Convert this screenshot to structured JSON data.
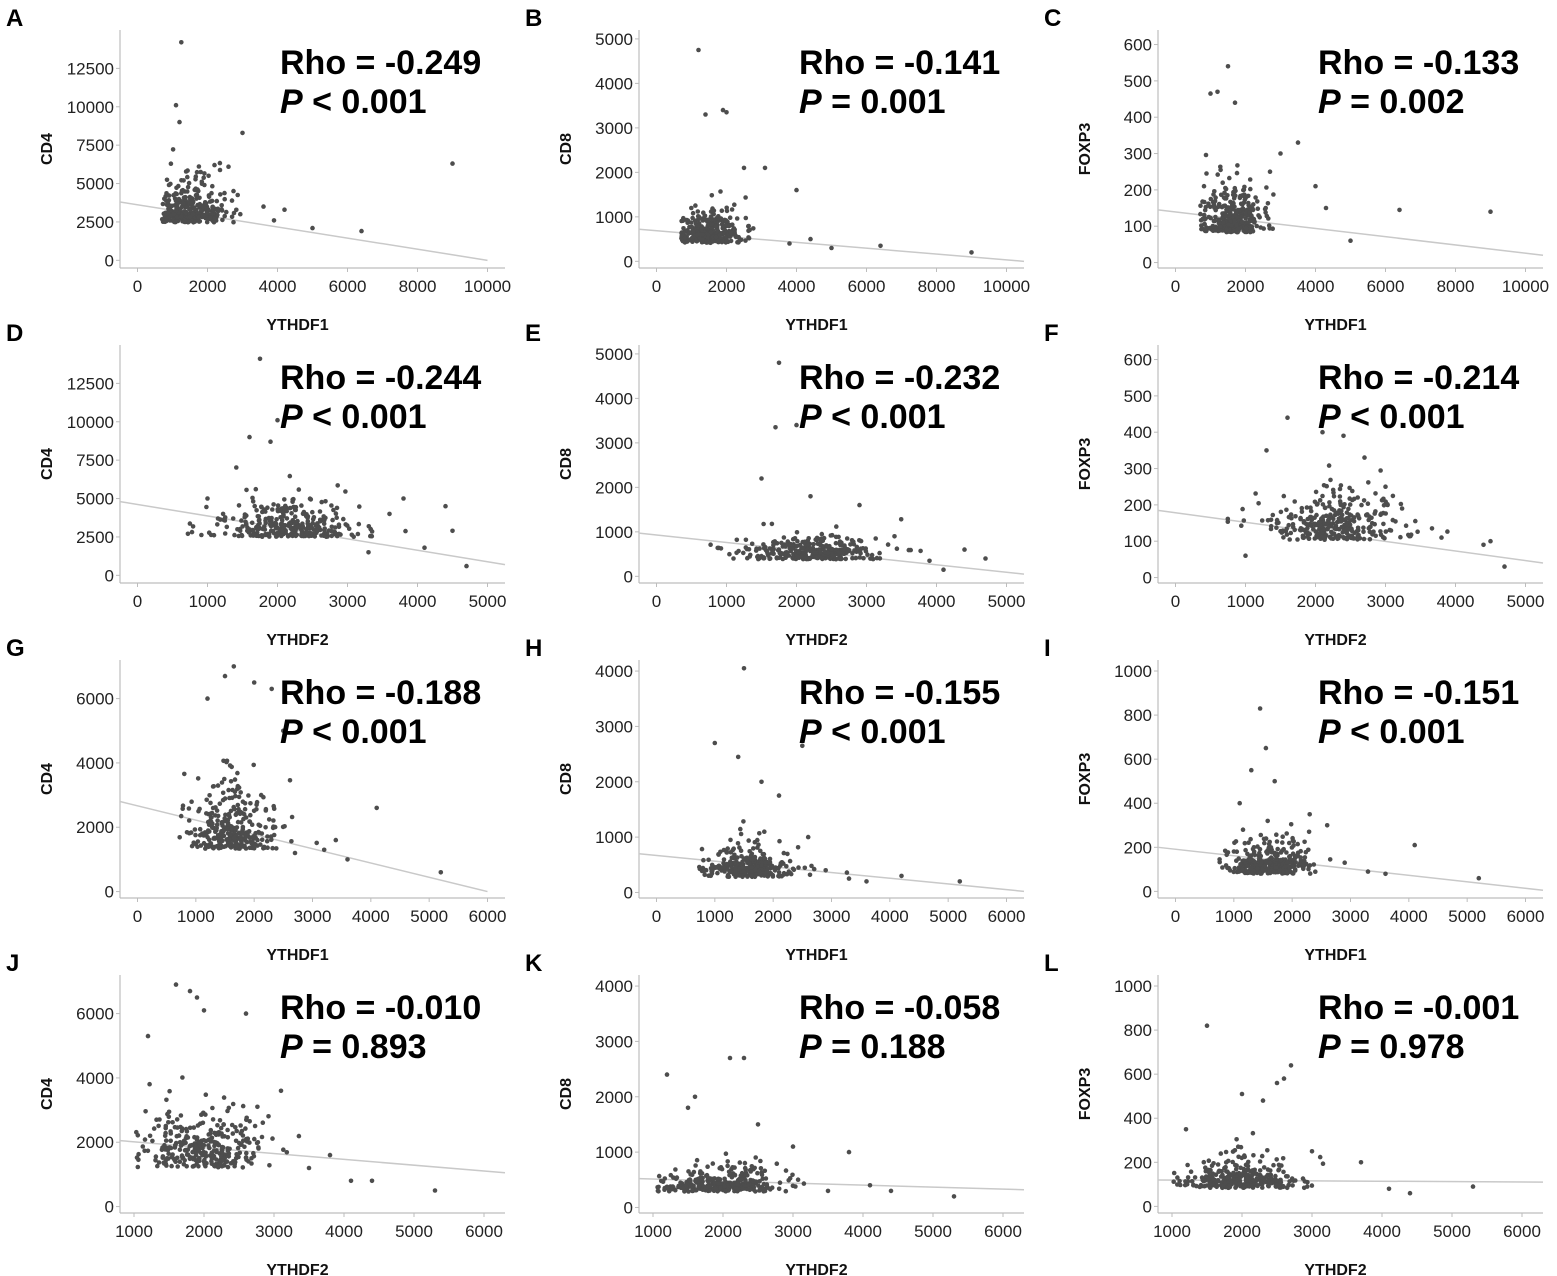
{
  "chart_data": [
    {
      "panel": "A",
      "type": "scatter",
      "xlabel": "YTHDF1",
      "ylabel": "CD4",
      "rho_label": "Rho = -0.249",
      "p_symbol": "P",
      "p_rest": " < 0.001",
      "rho": -0.249,
      "x_ticks": [
        0,
        2000,
        4000,
        6000,
        8000,
        10000
      ],
      "y_ticks": [
        0,
        2500,
        5000,
        7500,
        10000,
        12500
      ],
      "xlim": [
        -500,
        10500
      ],
      "ylim": [
        -500,
        15000
      ],
      "fit": [
        [
          -500,
          3800
        ],
        [
          10000,
          0
        ]
      ],
      "cluster": {
        "xc": 1500,
        "xs": 450,
        "yc": 3000,
        "ys": 1500,
        "n": 320,
        "seed": 11
      },
      "outliers": [
        [
          1250,
          14200
        ],
        [
          1100,
          10100
        ],
        [
          3000,
          8300
        ],
        [
          9000,
          6300
        ],
        [
          1200,
          9000
        ],
        [
          2200,
          6200
        ],
        [
          4200,
          3300
        ],
        [
          5000,
          2100
        ],
        [
          6400,
          1900
        ],
        [
          3600,
          3500
        ],
        [
          3900,
          2600
        ],
        [
          2600,
          6100
        ]
      ]
    },
    {
      "panel": "B",
      "type": "scatter",
      "xlabel": "YTHDF1",
      "ylabel": "CD8",
      "rho_label": "Rho = -0.141",
      "p_symbol": "P",
      "p_rest": " = 0.001",
      "rho": -0.141,
      "x_ticks": [
        0,
        2000,
        4000,
        6000,
        8000,
        10000
      ],
      "y_ticks": [
        0,
        1000,
        2000,
        3000,
        4000,
        5000
      ],
      "xlim": [
        -500,
        10500
      ],
      "ylim": [
        -150,
        5200
      ],
      "fit": [
        [
          -500,
          720
        ],
        [
          10500,
          0
        ]
      ],
      "cluster": {
        "xc": 1600,
        "xs": 450,
        "yc": 550,
        "ys": 380,
        "n": 320,
        "seed": 12
      },
      "outliers": [
        [
          1200,
          4750
        ],
        [
          1400,
          3300
        ],
        [
          1900,
          3400
        ],
        [
          2000,
          3350
        ],
        [
          2500,
          2100
        ],
        [
          4000,
          1600
        ],
        [
          3100,
          2100
        ],
        [
          5000,
          300
        ],
        [
          6400,
          350
        ],
        [
          9000,
          200
        ],
        [
          3800,
          400
        ],
        [
          4400,
          500
        ]
      ]
    },
    {
      "panel": "C",
      "type": "scatter",
      "xlabel": "YTHDF1",
      "ylabel": "FOXP3",
      "rho_label": "Rho = -0.133",
      "p_symbol": "P",
      "p_rest": " = 0.002",
      "rho": -0.133,
      "x_ticks": [
        0,
        2000,
        4000,
        6000,
        8000,
        10000
      ],
      "y_ticks": [
        0,
        100,
        200,
        300,
        400,
        500,
        600
      ],
      "xlim": [
        -500,
        10500
      ],
      "ylim": [
        -15,
        640
      ],
      "fit": [
        [
          -500,
          145
        ],
        [
          10500,
          20
        ]
      ],
      "cluster": {
        "xc": 1600,
        "xs": 450,
        "yc": 110,
        "ys": 75,
        "n": 320,
        "seed": 13
      },
      "outliers": [
        [
          1500,
          540
        ],
        [
          1000,
          465
        ],
        [
          1200,
          470
        ],
        [
          1700,
          440
        ],
        [
          3500,
          330
        ],
        [
          4000,
          210
        ],
        [
          5000,
          60
        ],
        [
          6400,
          145
        ],
        [
          9000,
          140
        ],
        [
          3000,
          300
        ],
        [
          4300,
          150
        ],
        [
          2700,
          250
        ]
      ]
    },
    {
      "panel": "D",
      "type": "scatter",
      "xlabel": "YTHDF2",
      "ylabel": "CD4",
      "rho_label": "Rho = -0.244",
      "p_symbol": "P",
      "p_rest": " < 0.001",
      "rho": -0.244,
      "x_ticks": [
        0,
        1000,
        2000,
        3000,
        4000,
        5000
      ],
      "y_ticks": [
        0,
        2500,
        5000,
        7500,
        10000,
        12500
      ],
      "xlim": [
        -250,
        5250
      ],
      "ylim": [
        -500,
        15000
      ],
      "fit": [
        [
          -250,
          4800
        ],
        [
          5250,
          700
        ]
      ],
      "cluster": {
        "xc": 2200,
        "xs": 480,
        "yc": 3000,
        "ys": 1400,
        "n": 320,
        "seed": 14
      },
      "outliers": [
        [
          1750,
          14100
        ],
        [
          2000,
          10100
        ],
        [
          1600,
          9000
        ],
        [
          1900,
          8700
        ],
        [
          3800,
          5000
        ],
        [
          4400,
          4500
        ],
        [
          4500,
          2900
        ],
        [
          4700,
          600
        ],
        [
          1000,
          5000
        ],
        [
          3300,
          1500
        ],
        [
          3600,
          4000
        ],
        [
          4100,
          1800
        ]
      ]
    },
    {
      "panel": "E",
      "type": "scatter",
      "xlabel": "YTHDF2",
      "ylabel": "CD8",
      "rho_label": "Rho = -0.232",
      "p_symbol": "P",
      "p_rest": " < 0.001",
      "rho": -0.232,
      "x_ticks": [
        0,
        1000,
        2000,
        3000,
        4000,
        5000
      ],
      "y_ticks": [
        0,
        1000,
        2000,
        3000,
        4000,
        5000
      ],
      "xlim": [
        -250,
        5250
      ],
      "ylim": [
        -150,
        5200
      ],
      "fit": [
        [
          -250,
          970
        ],
        [
          5250,
          50
        ]
      ],
      "cluster": {
        "xc": 2200,
        "xs": 480,
        "yc": 500,
        "ys": 330,
        "n": 320,
        "seed": 15
      },
      "outliers": [
        [
          1750,
          4800
        ],
        [
          1700,
          3350
        ],
        [
          2000,
          3400
        ],
        [
          1500,
          2200
        ],
        [
          2200,
          1800
        ],
        [
          2900,
          1600
        ],
        [
          3900,
          350
        ],
        [
          4400,
          600
        ],
        [
          4700,
          400
        ],
        [
          1100,
          400
        ],
        [
          3400,
          900
        ],
        [
          4100,
          150
        ]
      ]
    },
    {
      "panel": "F",
      "type": "scatter",
      "xlabel": "YTHDF2",
      "ylabel": "FOXP3",
      "rho_label": "Rho = -0.214",
      "p_symbol": "P",
      "p_rest": " < 0.001",
      "rho": -0.214,
      "x_ticks": [
        0,
        1000,
        2000,
        3000,
        4000,
        5000
      ],
      "y_ticks": [
        0,
        100,
        200,
        300,
        400,
        500,
        600
      ],
      "xlim": [
        -250,
        5250
      ],
      "ylim": [
        -15,
        640
      ],
      "fit": [
        [
          -250,
          185
        ],
        [
          5250,
          40
        ]
      ],
      "cluster": {
        "xc": 2200,
        "xs": 480,
        "yc": 130,
        "ys": 75,
        "n": 320,
        "seed": 16
      },
      "outliers": [
        [
          2300,
          530
        ],
        [
          1600,
          440
        ],
        [
          2100,
          400
        ],
        [
          2400,
          390
        ],
        [
          2700,
          330
        ],
        [
          3800,
          110
        ],
        [
          4400,
          90
        ],
        [
          4500,
          100
        ],
        [
          4700,
          30
        ],
        [
          1000,
          60
        ],
        [
          3000,
          250
        ],
        [
          1300,
          350
        ]
      ]
    },
    {
      "panel": "G",
      "type": "scatter",
      "xlabel": "YTHDF1",
      "ylabel": "CD4",
      "rho_label": "Rho = -0.188",
      "p_symbol": "P",
      "p_rest": " < 0.001",
      "rho": -0.188,
      "x_ticks": [
        0,
        1000,
        2000,
        3000,
        4000,
        5000,
        6000
      ],
      "y_ticks": [
        0,
        2000,
        4000,
        6000
      ],
      "xlim": [
        -300,
        6300
      ],
      "ylim": [
        -200,
        7200
      ],
      "fit": [
        [
          -300,
          2800
        ],
        [
          6000,
          0
        ]
      ],
      "cluster": {
        "xc": 1600,
        "xs": 360,
        "yc": 1700,
        "ys": 1050,
        "n": 320,
        "seed": 17
      },
      "outliers": [
        [
          1650,
          7000
        ],
        [
          1500,
          6700
        ],
        [
          2000,
          6500
        ],
        [
          2300,
          6300
        ],
        [
          2500,
          5000
        ],
        [
          4100,
          2600
        ],
        [
          5200,
          600
        ],
        [
          3400,
          1600
        ],
        [
          3600,
          1000
        ],
        [
          1200,
          6000
        ],
        [
          2700,
          1200
        ],
        [
          3200,
          1300
        ]
      ]
    },
    {
      "panel": "H",
      "type": "scatter",
      "xlabel": "YTHDF1",
      "ylabel": "CD8",
      "rho_label": "Rho = -0.155",
      "p_symbol": "P",
      "p_rest": " < 0.001",
      "rho": -0.155,
      "x_ticks": [
        0,
        1000,
        2000,
        3000,
        4000,
        5000,
        6000
      ],
      "y_ticks": [
        0,
        1000,
        2000,
        3000,
        4000
      ],
      "xlim": [
        -300,
        6300
      ],
      "ylim": [
        -100,
        4200
      ],
      "fit": [
        [
          -300,
          700
        ],
        [
          6300,
          20
        ]
      ],
      "cluster": {
        "xc": 1600,
        "xs": 360,
        "yc": 380,
        "ys": 280,
        "n": 320,
        "seed": 18
      },
      "outliers": [
        [
          1500,
          4050
        ],
        [
          1000,
          2700
        ],
        [
          2500,
          2650
        ],
        [
          1400,
          2450
        ],
        [
          1800,
          2000
        ],
        [
          2100,
          1750
        ],
        [
          4200,
          300
        ],
        [
          5200,
          200
        ],
        [
          3300,
          250
        ],
        [
          3600,
          200
        ],
        [
          2600,
          1000
        ],
        [
          2900,
          400
        ]
      ]
    },
    {
      "panel": "I",
      "type": "scatter",
      "xlabel": "YTHDF1",
      "ylabel": "FOXP3",
      "rho_label": "Rho = -0.151",
      "p_symbol": "P",
      "p_rest": " < 0.001",
      "rho": -0.151,
      "x_ticks": [
        0,
        1000,
        2000,
        3000,
        4000,
        5000,
        6000
      ],
      "y_ticks": [
        0,
        200,
        400,
        600,
        800,
        1000
      ],
      "xlim": [
        -300,
        6300
      ],
      "ylim": [
        -30,
        1050
      ],
      "fit": [
        [
          -300,
          200
        ],
        [
          6300,
          5
        ]
      ],
      "cluster": {
        "xc": 1600,
        "xs": 360,
        "yc": 110,
        "ys": 85,
        "n": 320,
        "seed": 19
      },
      "outliers": [
        [
          1450,
          830
        ],
        [
          1550,
          650
        ],
        [
          1300,
          550
        ],
        [
          1700,
          500
        ],
        [
          4100,
          210
        ],
        [
          5200,
          60
        ],
        [
          3300,
          90
        ],
        [
          3600,
          80
        ],
        [
          2600,
          300
        ],
        [
          2900,
          130
        ],
        [
          1100,
          400
        ],
        [
          2300,
          350
        ]
      ]
    },
    {
      "panel": "J",
      "type": "scatter",
      "xlabel": "YTHDF2",
      "ylabel": "CD4",
      "rho_label": "Rho = -0.010",
      "p_symbol": "P",
      "p_rest": " = 0.893",
      "rho": -0.01,
      "x_ticks": [
        1000,
        2000,
        3000,
        4000,
        5000,
        6000
      ],
      "y_ticks": [
        0,
        2000,
        4000,
        6000
      ],
      "xlim": [
        800,
        6300
      ],
      "ylim": [
        -200,
        7200
      ],
      "fit": [
        [
          800,
          2050
        ],
        [
          6300,
          1050
        ]
      ],
      "cluster": {
        "xc": 2000,
        "xs": 420,
        "yc": 1600,
        "ys": 1100,
        "n": 320,
        "seed": 20
      },
      "outliers": [
        [
          1600,
          6900
        ],
        [
          1800,
          6700
        ],
        [
          1900,
          6500
        ],
        [
          2000,
          6100
        ],
        [
          2600,
          6000
        ],
        [
          1200,
          5300
        ],
        [
          3100,
          3600
        ],
        [
          3800,
          1600
        ],
        [
          4100,
          800
        ],
        [
          4400,
          800
        ],
        [
          5300,
          500
        ],
        [
          3500,
          1200
        ]
      ]
    },
    {
      "panel": "K",
      "type": "scatter",
      "xlabel": "YTHDF2",
      "ylabel": "CD8",
      "rho_label": "Rho = -0.058",
      "p_symbol": "P",
      "p_rest": " = 0.188",
      "rho": -0.058,
      "x_ticks": [
        1000,
        2000,
        3000,
        4000,
        5000,
        6000
      ],
      "y_ticks": [
        0,
        1000,
        2000,
        3000,
        4000
      ],
      "xlim": [
        800,
        6300
      ],
      "ylim": [
        -100,
        4200
      ],
      "fit": [
        [
          800,
          520
        ],
        [
          6300,
          320
        ]
      ],
      "cluster": {
        "xc": 2000,
        "xs": 420,
        "yc": 380,
        "ys": 260,
        "n": 320,
        "seed": 21
      },
      "outliers": [
        [
          2100,
          2700
        ],
        [
          2300,
          2700
        ],
        [
          1200,
          2400
        ],
        [
          1600,
          2000
        ],
        [
          1500,
          1800
        ],
        [
          3000,
          1100
        ],
        [
          3800,
          1000
        ],
        [
          4100,
          400
        ],
        [
          4400,
          300
        ],
        [
          5300,
          200
        ],
        [
          2500,
          1500
        ],
        [
          3500,
          300
        ]
      ]
    },
    {
      "panel": "L",
      "type": "scatter",
      "xlabel": "YTHDF2",
      "ylabel": "FOXP3",
      "rho_label": "Rho = -0.001",
      "p_symbol": "P",
      "p_rest": " = 0.978",
      "rho": -0.001,
      "x_ticks": [
        1000,
        2000,
        3000,
        4000,
        5000,
        6000
      ],
      "y_ticks": [
        0,
        200,
        400,
        600,
        800,
        1000
      ],
      "xlim": [
        800,
        6300
      ],
      "ylim": [
        -30,
        1050
      ],
      "fit": [
        [
          800,
          120
        ],
        [
          6300,
          110
        ]
      ],
      "cluster": {
        "xc": 2000,
        "xs": 420,
        "yc": 110,
        "ys": 75,
        "n": 320,
        "seed": 22
      },
      "outliers": [
        [
          1500,
          820
        ],
        [
          2700,
          640
        ],
        [
          2600,
          580
        ],
        [
          2500,
          560
        ],
        [
          2000,
          510
        ],
        [
          2300,
          480
        ],
        [
          3700,
          200
        ],
        [
          4100,
          80
        ],
        [
          4400,
          60
        ],
        [
          5300,
          90
        ],
        [
          3000,
          250
        ],
        [
          1200,
          350
        ]
      ]
    }
  ]
}
